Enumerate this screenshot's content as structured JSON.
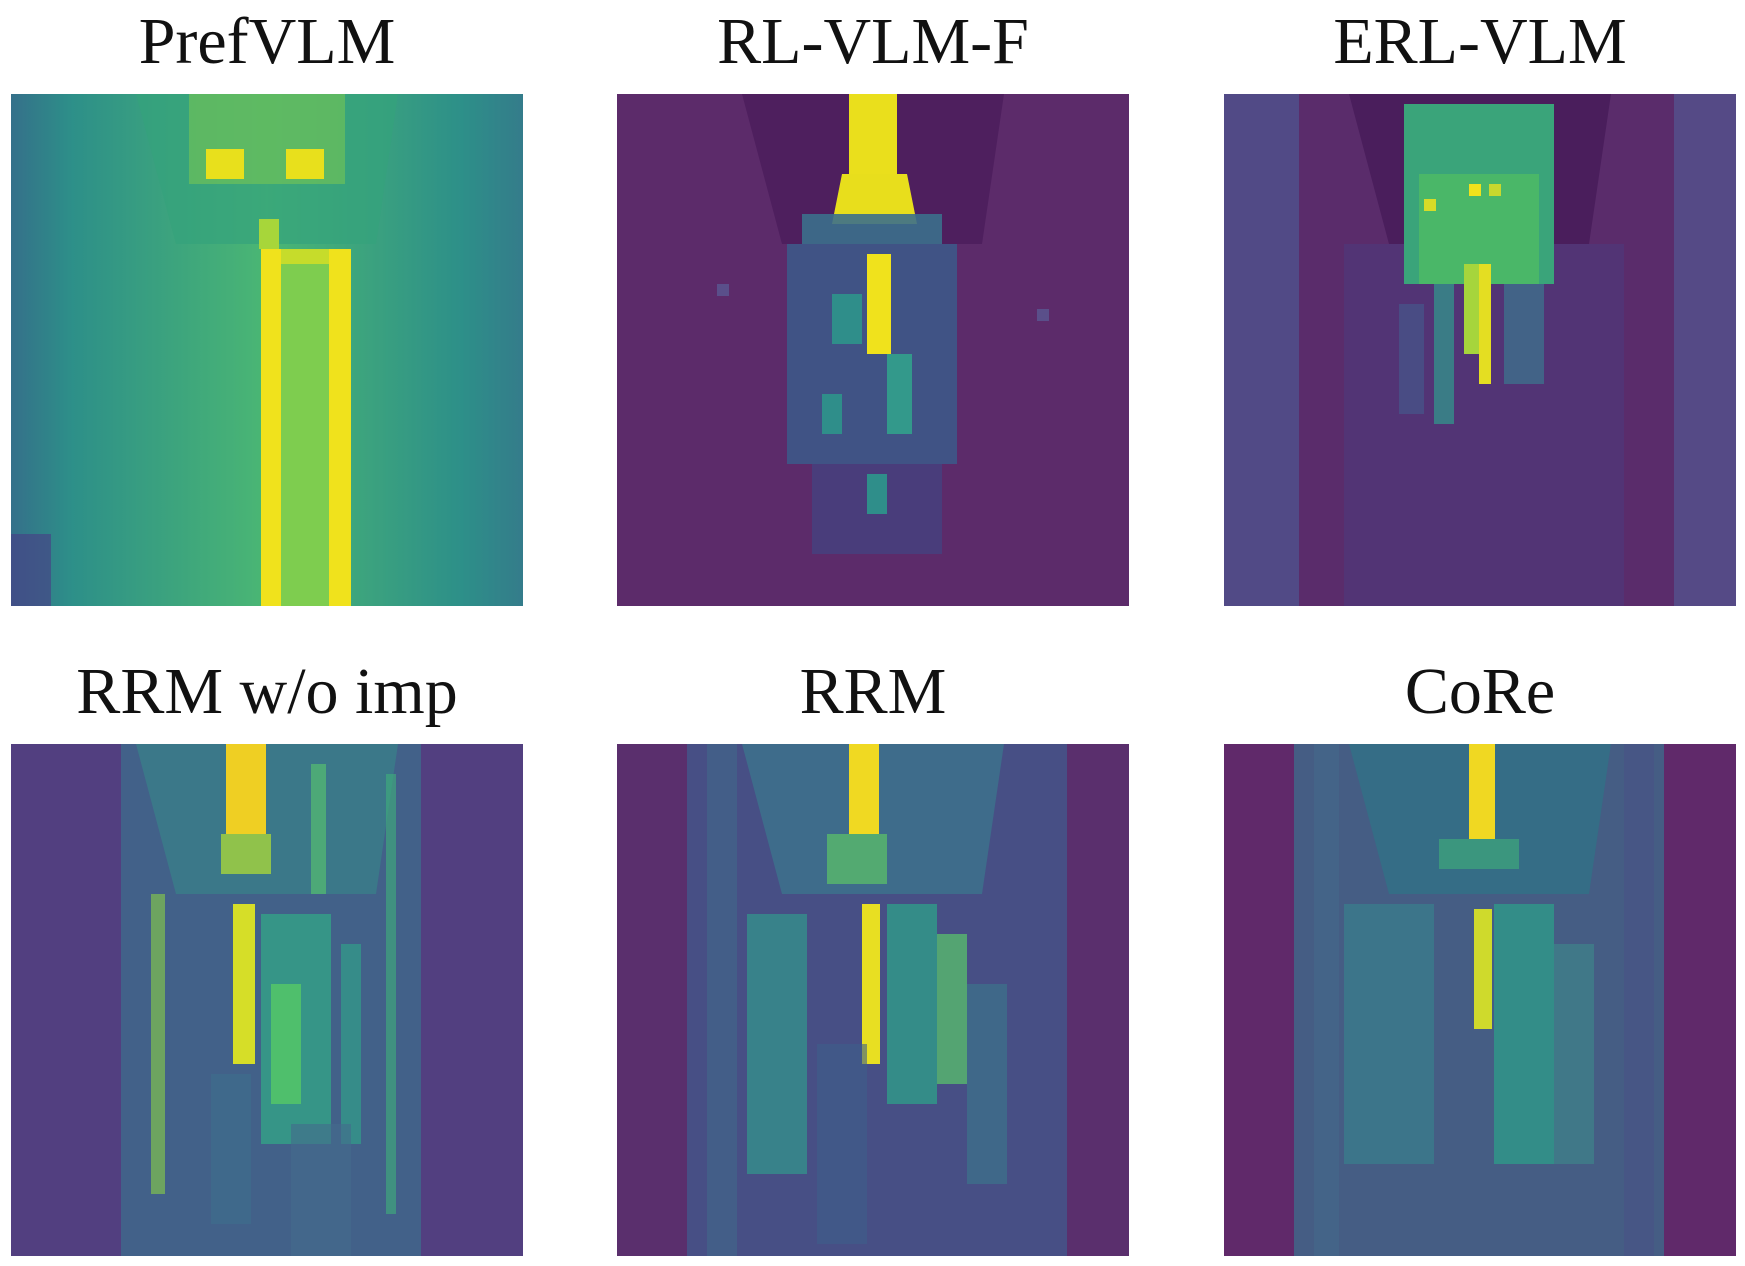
{
  "panels": [
    {
      "title": "PrefVLM"
    },
    {
      "title": "RL-VLM-F"
    },
    {
      "title": "ERL-VLM"
    },
    {
      "title": "RRM w/o imp"
    },
    {
      "title": "RRM"
    },
    {
      "title": "CoRe"
    }
  ],
  "colormap": {
    "name": "viridis",
    "low": "#440154",
    "mid": "#21918c",
    "high": "#fde725"
  }
}
